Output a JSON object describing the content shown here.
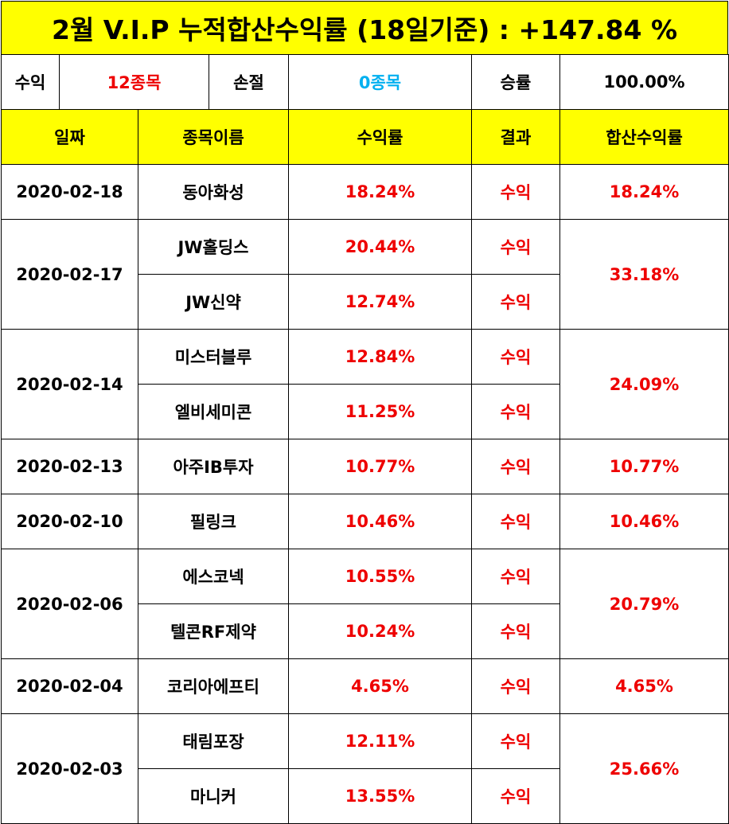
{
  "title": "2월 V.I.P 누적합산수익률 (18일기준) : +147.84 %",
  "summary": {
    "profit_label": "수익",
    "profit_count": "12종목",
    "loss_label": "손절",
    "loss_count": "0종목",
    "win_rate_label": "승률",
    "win_rate": "100.00%"
  },
  "headers": [
    "일짜",
    "종목이름",
    "수익률",
    "결과",
    "합산수익률"
  ],
  "colors": {
    "header_bg": "#ffff00",
    "profit": "#ee0000",
    "loss": "#00b0f0"
  },
  "groups": [
    {
      "date": "2020-02-18",
      "total": "18.24%",
      "stocks": [
        {
          "name": "동아화성",
          "rate": "18.24%",
          "result": "수익"
        }
      ]
    },
    {
      "date": "2020-02-17",
      "total": "33.18%",
      "stocks": [
        {
          "name": "JW홀딩스",
          "rate": "20.44%",
          "result": "수익"
        },
        {
          "name": "JW신약",
          "rate": "12.74%",
          "result": "수익"
        }
      ]
    },
    {
      "date": "2020-02-14",
      "total": "24.09%",
      "stocks": [
        {
          "name": "미스터블루",
          "rate": "12.84%",
          "result": "수익"
        },
        {
          "name": "엘비세미콘",
          "rate": "11.25%",
          "result": "수익"
        }
      ]
    },
    {
      "date": "2020-02-13",
      "total": "10.77%",
      "stocks": [
        {
          "name": "아주IB투자",
          "rate": "10.77%",
          "result": "수익"
        }
      ]
    },
    {
      "date": "2020-02-10",
      "total": "10.46%",
      "stocks": [
        {
          "name": "필링크",
          "rate": "10.46%",
          "result": "수익"
        }
      ]
    },
    {
      "date": "2020-02-06",
      "total": "20.79%",
      "stocks": [
        {
          "name": "에스코넥",
          "rate": "10.55%",
          "result": "수익"
        },
        {
          "name": "텔콘RF제약",
          "rate": "10.24%",
          "result": "수익"
        }
      ]
    },
    {
      "date": "2020-02-04",
      "total": "4.65%",
      "stocks": [
        {
          "name": "코리아에프티",
          "rate": "4.65%",
          "result": "수익"
        }
      ]
    },
    {
      "date": "2020-02-03",
      "total": "25.66%",
      "stocks": [
        {
          "name": "태림포장",
          "rate": "12.11%",
          "result": "수익"
        },
        {
          "name": "마니커",
          "rate": "13.55%",
          "result": "수익"
        }
      ]
    }
  ]
}
